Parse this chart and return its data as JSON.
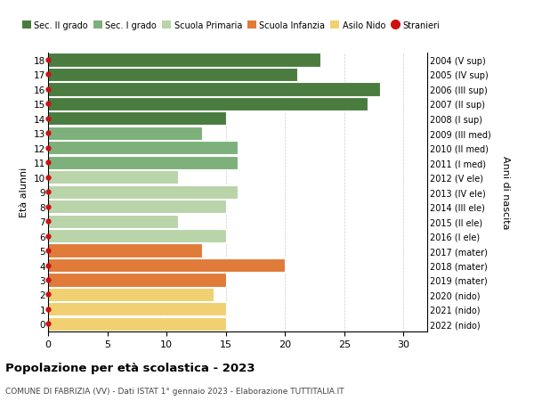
{
  "ages": [
    18,
    17,
    16,
    15,
    14,
    13,
    12,
    11,
    10,
    9,
    8,
    7,
    6,
    5,
    4,
    3,
    2,
    1,
    0
  ],
  "values": [
    23,
    21,
    28,
    27,
    15,
    13,
    16,
    16,
    11,
    16,
    15,
    11,
    15,
    13,
    20,
    15,
    14,
    15,
    15
  ],
  "right_labels": [
    "2004 (V sup)",
    "2005 (IV sup)",
    "2006 (III sup)",
    "2007 (II sup)",
    "2008 (I sup)",
    "2009 (III med)",
    "2010 (II med)",
    "2011 (I med)",
    "2012 (V ele)",
    "2013 (IV ele)",
    "2014 (III ele)",
    "2015 (II ele)",
    "2016 (I ele)",
    "2017 (mater)",
    "2018 (mater)",
    "2019 (mater)",
    "2020 (nido)",
    "2021 (nido)",
    "2022 (nido)"
  ],
  "bar_colors": [
    "#4a7c3f",
    "#4a7c3f",
    "#4a7c3f",
    "#4a7c3f",
    "#4a7c3f",
    "#7db07a",
    "#7db07a",
    "#7db07a",
    "#b8d4a8",
    "#b8d4a8",
    "#b8d4a8",
    "#b8d4a8",
    "#b8d4a8",
    "#e07b3a",
    "#e07b3a",
    "#e07b3a",
    "#f0d070",
    "#f0d070",
    "#f0d070"
  ],
  "legend_labels": [
    "Sec. II grado",
    "Sec. I grado",
    "Scuola Primaria",
    "Scuola Infanzia",
    "Asilo Nido",
    "Stranieri"
  ],
  "legend_colors": [
    "#4a7c3f",
    "#7db07a",
    "#b8d4a8",
    "#e07b3a",
    "#f0d070",
    "#cc1111"
  ],
  "stranieri_dot_color": "#cc1111",
  "title": "Popolazione per età scolastica - 2023",
  "subtitle": "COMUNE DI FABRIZIA (VV) - Dati ISTAT 1° gennaio 2023 - Elaborazione TUTTITALIA.IT",
  "ylabel": "Età alunni",
  "right_ylabel": "Anni di nascita",
  "xlim": [
    0,
    32
  ],
  "xticks": [
    0,
    5,
    10,
    15,
    20,
    25,
    30
  ],
  "bar_height": 0.92,
  "background_color": "#ffffff",
  "grid_color": "#cccccc"
}
